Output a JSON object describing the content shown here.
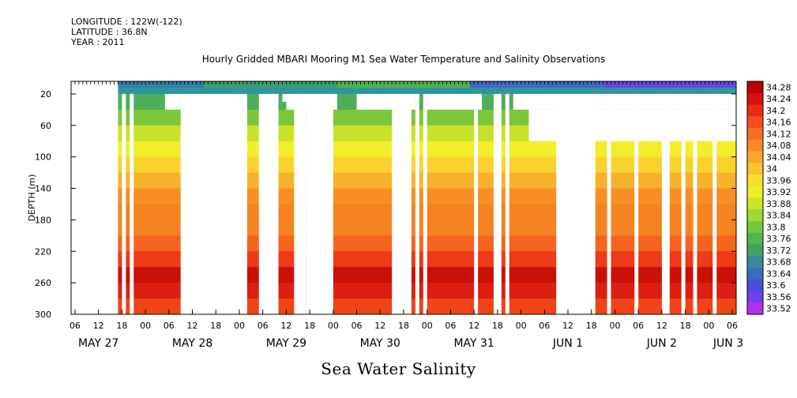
{
  "header": {
    "longitude": "LONGITUDE : 122W(-122)",
    "latitude": "LATITUDE : 36.8N",
    "year": "YEAR : 2011"
  },
  "chart_data": {
    "type": "heatmap",
    "title": "Hourly Gridded MBARI Mooring M1 Sea Water Temperature and Salinity Observations",
    "subtitle": "Sea Water Salinity",
    "ylabel": "DEPTH (m)",
    "xlabel": "",
    "y_range": [
      300,
      0
    ],
    "y_ticks": [
      20,
      60,
      100,
      140,
      180,
      220,
      260,
      300
    ],
    "x_range_hours": [
      0,
      170
    ],
    "x_ticks_hour": [
      "06",
      "12",
      "18",
      "00",
      "06",
      "12",
      "18",
      "00",
      "06",
      "12",
      "18",
      "00",
      "06",
      "12",
      "18",
      "00",
      "06",
      "12",
      "18",
      "00",
      "06",
      "12",
      "18",
      "00",
      "06",
      "12",
      "18",
      "00",
      "06",
      "12",
      "18",
      "00"
    ],
    "x_ticks_date": [
      "MAY 27",
      "MAY 28",
      "MAY 29",
      "MAY 30",
      "MAY 31",
      "JUN  1",
      "JUN  2",
      "JUN  3"
    ],
    "colorbar": {
      "labels": [
        "34.28",
        "34.24",
        "34.2",
        "34.16",
        "34.12",
        "34.08",
        "34.04",
        "34",
        "33.96",
        "33.92",
        "33.88",
        "33.84",
        "33.8",
        "33.76",
        "33.72",
        "33.68",
        "33.64",
        "33.6",
        "33.56",
        "33.52"
      ],
      "colors": [
        "#b80000",
        "#d41010",
        "#ea2a14",
        "#f5501a",
        "#f76f20",
        "#f88a26",
        "#faa72c",
        "#fbc230",
        "#f7de2e",
        "#ecf026",
        "#c8e62a",
        "#9fd830",
        "#74c83c",
        "#52b54e",
        "#3fa068",
        "#3a8898",
        "#3a6cc0",
        "#4650d8",
        "#7040e8",
        "#b030f0"
      ]
    },
    "profile_colors": [
      {
        "depth_from": 4,
        "depth_to": 20,
        "color": "#2f96a0"
      },
      {
        "depth_from": 20,
        "depth_to": 40,
        "color": "#4fae5a"
      },
      {
        "depth_from": 40,
        "depth_to": 60,
        "color": "#7cc63a"
      },
      {
        "depth_from": 60,
        "depth_to": 80,
        "color": "#c8e22c"
      },
      {
        "depth_from": 80,
        "depth_to": 100,
        "color": "#f2ee2a"
      },
      {
        "depth_from": 100,
        "depth_to": 120,
        "color": "#f9d22e"
      },
      {
        "depth_from": 120,
        "depth_to": 140,
        "color": "#f8b12a"
      },
      {
        "depth_from": 140,
        "depth_to": 160,
        "color": "#f78f24"
      },
      {
        "depth_from": 160,
        "depth_to": 180,
        "color": "#f58322"
      },
      {
        "depth_from": 180,
        "depth_to": 200,
        "color": "#f58322"
      },
      {
        "depth_from": 200,
        "depth_to": 220,
        "color": "#f5641e"
      },
      {
        "depth_from": 220,
        "depth_to": 240,
        "color": "#ee3a16"
      },
      {
        "depth_from": 240,
        "depth_to": 260,
        "color": "#c81008"
      },
      {
        "depth_from": 260,
        "depth_to": 280,
        "color": "#de1e10"
      },
      {
        "depth_from": 280,
        "depth_to": 300,
        "color": "#ef4418"
      }
    ],
    "data_gaps": [
      {
        "x0": 0,
        "x1": 12,
        "y0": 4,
        "y1": 300
      },
      {
        "x0": 13,
        "x1": 14,
        "y0": 20,
        "y1": 300
      },
      {
        "x0": 15,
        "x1": 16,
        "y0": 20,
        "y1": 300
      },
      {
        "x0": 24,
        "x1": 28,
        "y0": 20,
        "y1": 40
      },
      {
        "x0": 28,
        "x1": 42,
        "y0": 20,
        "y1": 300
      },
      {
        "x0": 41,
        "x1": 45,
        "y0": 20,
        "y1": 300
      },
      {
        "x0": 48,
        "x1": 53,
        "y0": 20,
        "y1": 300
      },
      {
        "x0": 50,
        "x1": 53,
        "y0": 20,
        "y1": 40
      },
      {
        "x0": 54,
        "x1": 55,
        "y0": 20,
        "y1": 30
      },
      {
        "x0": 55,
        "x1": 68,
        "y0": 20,
        "y1": 40
      },
      {
        "x0": 57,
        "x1": 60,
        "y0": 20,
        "y1": 300
      },
      {
        "x0": 60,
        "x1": 67,
        "y0": 20,
        "y1": 300
      },
      {
        "x0": 73,
        "x1": 88,
        "y0": 20,
        "y1": 40
      },
      {
        "x0": 82,
        "x1": 87,
        "y0": 20,
        "y1": 300
      },
      {
        "x0": 88,
        "x1": 89,
        "y0": 20,
        "y1": 300
      },
      {
        "x0": 90,
        "x1": 91,
        "y0": 20,
        "y1": 300
      },
      {
        "x0": 91,
        "x1": 105,
        "y0": 20,
        "y1": 40
      },
      {
        "x0": 103,
        "x1": 104,
        "y0": 20,
        "y1": 300
      },
      {
        "x0": 108,
        "x1": 110,
        "y0": 20,
        "y1": 300
      },
      {
        "x0": 111,
        "x1": 112,
        "y0": 20,
        "y1": 300
      },
      {
        "x0": 113,
        "x1": 170,
        "y0": 20,
        "y1": 40
      },
      {
        "x0": 117,
        "x1": 170,
        "y0": 40,
        "y1": 80
      },
      {
        "x0": 124,
        "x1": 134,
        "y0": 20,
        "y1": 300
      },
      {
        "x0": 137,
        "x1": 138,
        "y0": 20,
        "y1": 300
      },
      {
        "x0": 144,
        "x1": 145,
        "y0": 20,
        "y1": 300
      },
      {
        "x0": 151,
        "x1": 153,
        "y0": 20,
        "y1": 300
      },
      {
        "x0": 156,
        "x1": 157,
        "y0": 20,
        "y1": 300
      },
      {
        "x0": 159,
        "x1": 160,
        "y0": 20,
        "y1": 300
      },
      {
        "x0": 164,
        "x1": 165,
        "y0": 20,
        "y1": 300
      }
    ],
    "surface_band": {
      "depth_from": 4,
      "depth_to": 12,
      "colors": [
        "#2f7fa8",
        "#3aa070",
        "#4fb24a",
        "#3f6ac8",
        "#6648e0"
      ]
    },
    "grid": false,
    "legend_position": "right"
  }
}
